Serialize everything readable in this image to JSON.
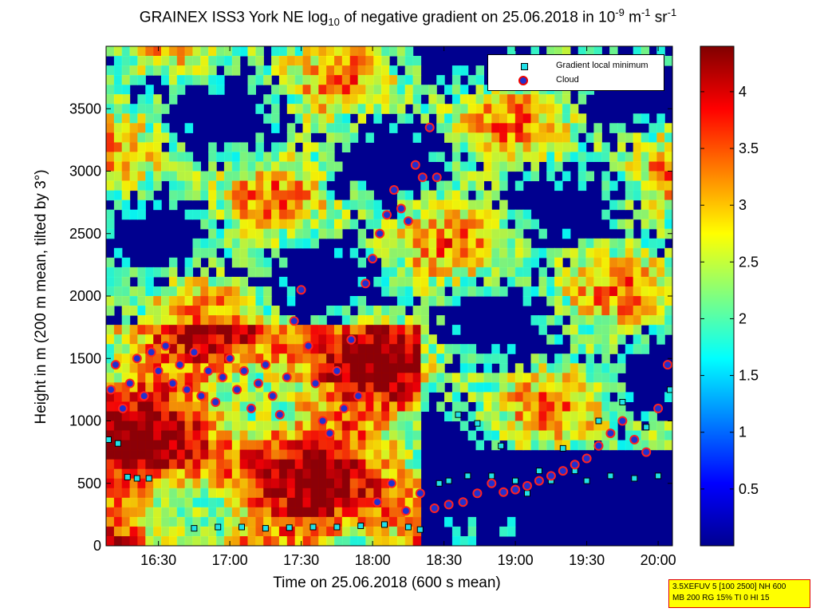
{
  "title": {
    "part1": "GRAINEX ISS3 York NE log",
    "sub": "10",
    "part2": " of negative gradient on 25.06.2018 in 10",
    "sup1": "-9",
    "part3": " m",
    "sup2": "-1",
    "part4": " sr",
    "sup3": "-1"
  },
  "chart_data": {
    "type": "heatmap",
    "xlabel": "Time on 25.06.2018 (600 s mean)",
    "ylabel": "Height in m (200 m mean, tilted by 3°)",
    "x_ticks": [
      "16:30",
      "17:00",
      "17:30",
      "18:00",
      "18:30",
      "19:00",
      "19:30",
      "20:00"
    ],
    "x_tick_minutes": [
      990,
      1020,
      1050,
      1080,
      1110,
      1140,
      1170,
      1200
    ],
    "xlim_minutes": [
      968,
      1206
    ],
    "y_ticks": [
      0,
      500,
      1000,
      1500,
      2000,
      2500,
      3000,
      3500
    ],
    "ylim": [
      0,
      4000
    ],
    "colorbar": {
      "ticks": [
        "0.5",
        "1",
        "1.5",
        "2",
        "2.5",
        "3",
        "3.5",
        "4"
      ],
      "tick_values": [
        0.5,
        1,
        1.5,
        2,
        2.5,
        3,
        3.5,
        4
      ],
      "range": [
        0,
        4.4
      ],
      "colormap": "jet"
    },
    "legend": {
      "placement": "top-right",
      "entries": [
        "Gradient local minimum",
        "Cloud"
      ]
    },
    "series": [
      {
        "name": "Cloud",
        "points": [
          [
            970,
            1250
          ],
          [
            972,
            1450
          ],
          [
            975,
            1100
          ],
          [
            978,
            1300
          ],
          [
            981,
            1500
          ],
          [
            984,
            1200
          ],
          [
            987,
            1550
          ],
          [
            990,
            1400
          ],
          [
            993,
            1600
          ],
          [
            996,
            1300
          ],
          [
            999,
            1450
          ],
          [
            1002,
            1250
          ],
          [
            1005,
            1550
          ],
          [
            1008,
            1200
          ],
          [
            1011,
            1400
          ],
          [
            1014,
            1150
          ],
          [
            1017,
            1350
          ],
          [
            1020,
            1500
          ],
          [
            1023,
            1250
          ],
          [
            1026,
            1400
          ],
          [
            1029,
            1100
          ],
          [
            1032,
            1300
          ],
          [
            1035,
            1450
          ],
          [
            1038,
            1200
          ],
          [
            1041,
            1050
          ],
          [
            1044,
            1350
          ],
          [
            1047,
            1800
          ],
          [
            1050,
            2050
          ],
          [
            1053,
            1600
          ],
          [
            1056,
            1300
          ],
          [
            1059,
            1000
          ],
          [
            1062,
            900
          ],
          [
            1065,
            1400
          ],
          [
            1068,
            1100
          ],
          [
            1071,
            1650
          ],
          [
            1074,
            1200
          ],
          [
            1077,
            2100
          ],
          [
            1080,
            2300
          ],
          [
            1083,
            2500
          ],
          [
            1086,
            2650
          ],
          [
            1089,
            2850
          ],
          [
            1092,
            2700
          ],
          [
            1095,
            2600
          ],
          [
            1098,
            3050
          ],
          [
            1101,
            2950
          ],
          [
            1104,
            3350
          ],
          [
            1107,
            2950
          ],
          [
            1082,
            350
          ],
          [
            1088,
            500
          ],
          [
            1094,
            280
          ],
          [
            1100,
            420
          ],
          [
            1106,
            300
          ],
          [
            1112,
            330
          ],
          [
            1118,
            350
          ],
          [
            1124,
            420
          ],
          [
            1130,
            500
          ],
          [
            1135,
            430
          ],
          [
            1140,
            450
          ],
          [
            1145,
            480
          ],
          [
            1150,
            520
          ],
          [
            1155,
            560
          ],
          [
            1160,
            600
          ],
          [
            1165,
            650
          ],
          [
            1170,
            700
          ],
          [
            1175,
            800
          ],
          [
            1180,
            900
          ],
          [
            1185,
            1000
          ],
          [
            1190,
            850
          ],
          [
            1195,
            750
          ],
          [
            1200,
            1100
          ],
          [
            1204,
            1450
          ]
        ]
      },
      {
        "name": "Gradient local minimum",
        "points": [
          [
            969,
            850
          ],
          [
            973,
            820
          ],
          [
            977,
            550
          ],
          [
            981,
            540
          ],
          [
            986,
            540
          ],
          [
            1005,
            140
          ],
          [
            1015,
            150
          ],
          [
            1025,
            150
          ],
          [
            1035,
            140
          ],
          [
            1045,
            145
          ],
          [
            1055,
            150
          ],
          [
            1065,
            150
          ],
          [
            1075,
            160
          ],
          [
            1085,
            170
          ],
          [
            1095,
            150
          ],
          [
            1100,
            130
          ],
          [
            1108,
            500
          ],
          [
            1112,
            520
          ],
          [
            1116,
            1050
          ],
          [
            1120,
            560
          ],
          [
            1124,
            980
          ],
          [
            1130,
            560
          ],
          [
            1134,
            800
          ],
          [
            1140,
            520
          ],
          [
            1145,
            420
          ],
          [
            1150,
            600
          ],
          [
            1155,
            520
          ],
          [
            1160,
            780
          ],
          [
            1165,
            600
          ],
          [
            1170,
            520
          ],
          [
            1175,
            1000
          ],
          [
            1180,
            560
          ],
          [
            1185,
            1150
          ],
          [
            1190,
            540
          ],
          [
            1195,
            950
          ],
          [
            1200,
            560
          ],
          [
            1205,
            1250
          ]
        ]
      }
    ]
  },
  "infobox": {
    "line1": "3.5XEFUV 5 [100 2500] NH 600",
    "line2": "MB 200 RG 15% TI 0 HI 15"
  }
}
